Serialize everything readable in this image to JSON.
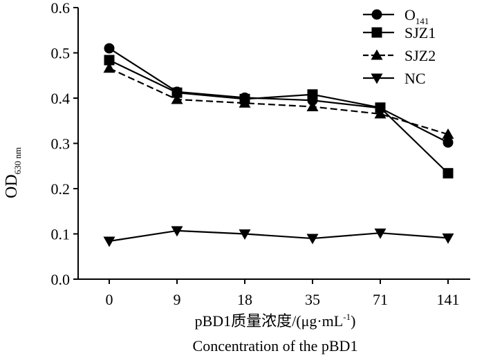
{
  "chart_data": {
    "type": "line",
    "title": "",
    "ylabel": {
      "main": "OD",
      "sub": "630 nm"
    },
    "xlabel": "pBD1质量浓度/(μg·mL",
    "xlabel_sup": "-1",
    "xlabel_close": ")",
    "xlabel_en": "Concentration of the pBD1",
    "categories": [
      "0",
      "9",
      "18",
      "35",
      "71",
      "141"
    ],
    "ylim": [
      0,
      0.6
    ],
    "yticks": [
      "0.0",
      "0.1",
      "0.2",
      "0.3",
      "0.4",
      "0.5",
      "0.6"
    ],
    "legend_position": "top-right",
    "series": [
      {
        "name": "O",
        "name_sub": "141",
        "marker": "circle",
        "dash": "solid",
        "values": [
          0.51,
          0.414,
          0.401,
          0.395,
          0.378,
          0.302
        ]
      },
      {
        "name": "SJZ1",
        "marker": "square",
        "dash": "solid",
        "values": [
          0.484,
          0.412,
          0.398,
          0.408,
          0.379,
          0.234
        ]
      },
      {
        "name": "SJZ2",
        "marker": "triangle-up",
        "dash": "dashed",
        "values": [
          0.466,
          0.397,
          0.389,
          0.381,
          0.365,
          0.32
        ]
      },
      {
        "name": "NC",
        "marker": "triangle-down",
        "dash": "solid",
        "values": [
          0.084,
          0.107,
          0.1,
          0.09,
          0.102,
          0.091
        ]
      }
    ]
  }
}
